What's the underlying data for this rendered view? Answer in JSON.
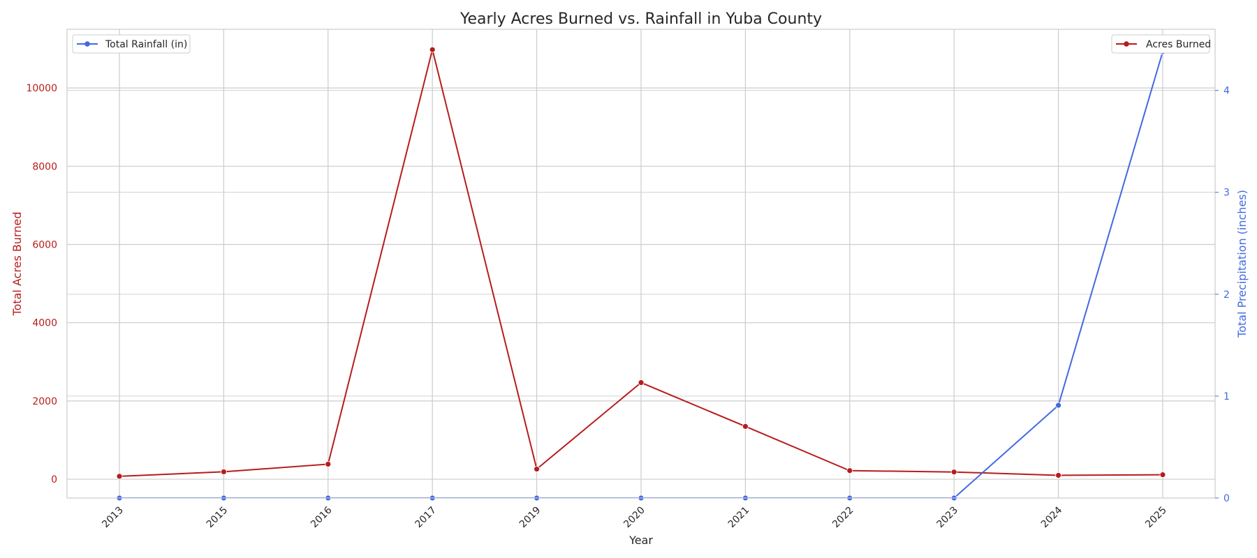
{
  "chart_data": {
    "type": "line",
    "title": "Yearly Acres Burned vs. Rainfall in Yuba County",
    "xlabel": "Year",
    "ylabel_left": "Total Acres Burned",
    "ylabel_right": "Total Precipitation (inches)",
    "categories": [
      "2013",
      "2015",
      "2016",
      "2017",
      "2019",
      "2020",
      "2021",
      "2022",
      "2023",
      "2024",
      "2025"
    ],
    "left_axis": {
      "ylim": [
        -480,
        11500
      ],
      "ticks": [
        0,
        2000,
        4000,
        6000,
        8000,
        10000
      ]
    },
    "right_axis": {
      "ylim": [
        0,
        4.6
      ],
      "ticks": [
        0,
        1,
        2,
        3,
        4
      ]
    },
    "grid": true,
    "series": [
      {
        "name": "Acres Burned",
        "axis": "left",
        "color": "#b71c1c",
        "legend": "top-right",
        "values": [
          75,
          190,
          385,
          10980,
          260,
          2470,
          1350,
          220,
          185,
          100,
          115
        ]
      },
      {
        "name": "Total Rainfall (in)",
        "axis": "right",
        "color": "#4169e1",
        "legend": "top-left",
        "values": [
          0,
          0,
          0,
          0,
          0,
          0,
          0,
          0,
          0,
          0.91,
          4.38
        ]
      }
    ]
  }
}
